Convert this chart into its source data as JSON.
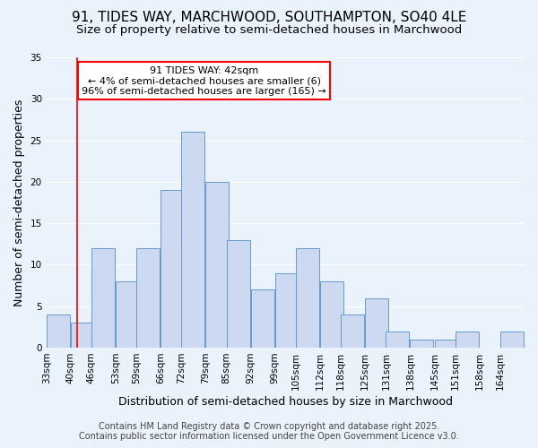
{
  "title": "91, TIDES WAY, MARCHWOOD, SOUTHAMPTON, SO40 4LE",
  "subtitle": "Size of property relative to semi-detached houses in Marchwood",
  "xlabel": "Distribution of semi-detached houses by size in Marchwood",
  "ylabel": "Number of semi-detached properties",
  "bin_labels": [
    "33sqm",
    "40sqm",
    "46sqm",
    "53sqm",
    "59sqm",
    "66sqm",
    "72sqm",
    "79sqm",
    "85sqm",
    "92sqm",
    "99sqm",
    "105sqm",
    "112sqm",
    "118sqm",
    "125sqm",
    "131sqm",
    "138sqm",
    "145sqm",
    "151sqm",
    "158sqm",
    "164sqm"
  ],
  "bar_values": [
    4,
    3,
    12,
    8,
    12,
    19,
    26,
    20,
    13,
    7,
    9,
    12,
    8,
    4,
    6,
    2,
    1,
    1,
    2,
    0,
    2
  ],
  "bar_color": "#ccd9f0",
  "bar_edge_color": "#6699cc",
  "annotation_title": "91 TIDES WAY: 42sqm",
  "annotation_line1": "← 4% of semi-detached houses are smaller (6)",
  "annotation_line2": "96% of semi-detached houses are larger (165) →",
  "annotation_box_color": "white",
  "annotation_box_edge": "red",
  "red_line_x": 42,
  "ylim": [
    0,
    35
  ],
  "yticks": [
    0,
    5,
    10,
    15,
    20,
    25,
    30,
    35
  ],
  "bg_color": "#eaf2fb",
  "footer1": "Contains HM Land Registry data © Crown copyright and database right 2025.",
  "footer2": "Contains public sector information licensed under the Open Government Licence v3.0.",
  "title_fontsize": 11,
  "subtitle_fontsize": 9.5,
  "axis_label_fontsize": 9,
  "tick_fontsize": 7.5,
  "annotation_fontsize": 8,
  "footer_fontsize": 7
}
